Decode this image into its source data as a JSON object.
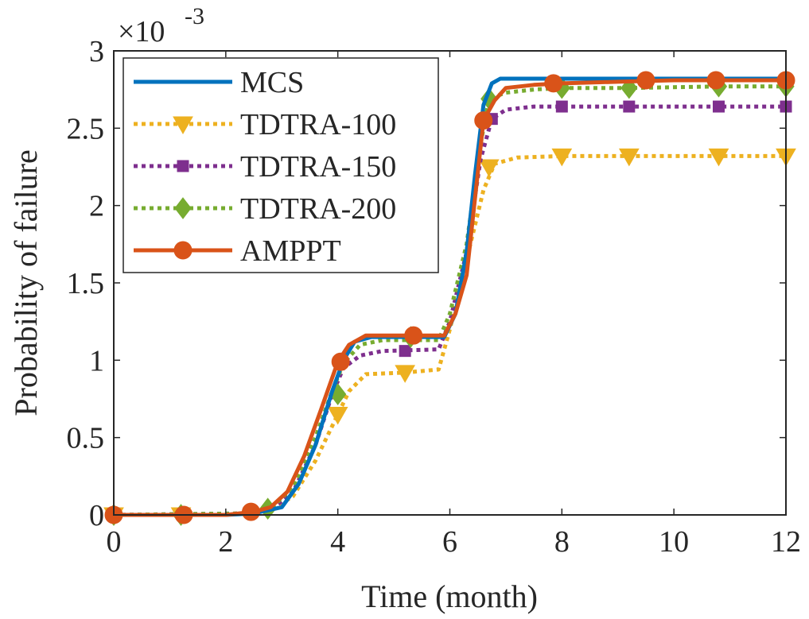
{
  "chart_data": {
    "type": "line",
    "xlabel": "Time (month)",
    "ylabel": "Probability of failure",
    "y_exponent_label": "×10",
    "y_exponent_power": "-3",
    "xlim": [
      0,
      12
    ],
    "ylim": [
      0,
      3
    ],
    "xticks": [
      0,
      2,
      4,
      6,
      8,
      10,
      12
    ],
    "yticks": [
      0,
      0.5,
      1,
      1.5,
      2,
      2.5,
      3
    ],
    "ytick_labels": [
      "0",
      "0.5",
      "1",
      "1.5",
      "2",
      "2.5",
      "3"
    ],
    "grid": false,
    "legend_position": "top-left",
    "series": [
      {
        "name": "MCS",
        "color": "#0072BD",
        "style": "solid",
        "marker": "none",
        "x": [
          0,
          2,
          2.5,
          3,
          3.3,
          3.6,
          3.9,
          4.1,
          4.3,
          4.6,
          5.0,
          5.5,
          5.9,
          6.1,
          6.3,
          6.45,
          6.6,
          6.75,
          6.9,
          7.5,
          8,
          9,
          10,
          11,
          12
        ],
        "y": [
          0,
          0,
          0.01,
          0.05,
          0.2,
          0.45,
          0.8,
          1.0,
          1.12,
          1.15,
          1.15,
          1.15,
          1.15,
          1.3,
          1.7,
          2.2,
          2.65,
          2.79,
          2.82,
          2.82,
          2.82,
          2.82,
          2.82,
          2.82,
          2.82
        ]
      },
      {
        "name": "TDTRA-100",
        "color": "#EDB120",
        "style": "dotted",
        "marker": "triangle-down",
        "x": [
          0,
          1.2,
          2.4,
          2.8,
          3.2,
          3.6,
          4.0,
          4.2,
          4.5,
          5.2,
          5.8,
          6.0,
          6.3,
          6.6,
          6.8,
          7.2,
          8.0,
          9.2,
          10.8,
          12
        ],
        "y": [
          0,
          0,
          0.01,
          0.03,
          0.12,
          0.35,
          0.65,
          0.8,
          0.91,
          0.92,
          0.94,
          1.2,
          1.65,
          2.1,
          2.27,
          2.31,
          2.32,
          2.32,
          2.32,
          2.32
        ],
        "marker_x": [
          0,
          1.2,
          4.0,
          5.2,
          6.7,
          8.0,
          9.2,
          10.8,
          12
        ],
        "marker_y": [
          0,
          0,
          0.65,
          0.92,
          2.25,
          2.32,
          2.32,
          2.32,
          2.32
        ]
      },
      {
        "name": "TDTRA-150",
        "color": "#7E2F8E",
        "style": "dotted",
        "marker": "square",
        "x": [
          0,
          2.4,
          2.8,
          3.2,
          3.6,
          3.9,
          4.1,
          4.4,
          4.8,
          5.8,
          6.0,
          6.3,
          6.55,
          6.75,
          7.0,
          7.5,
          8,
          9.2,
          10.8,
          12
        ],
        "y": [
          0,
          0.01,
          0.03,
          0.15,
          0.45,
          0.78,
          0.95,
          1.03,
          1.06,
          1.07,
          1.25,
          1.7,
          2.3,
          2.56,
          2.62,
          2.64,
          2.64,
          2.64,
          2.64,
          2.64
        ],
        "marker_x": [
          5.2,
          6.75,
          8.0,
          9.2,
          10.8,
          12
        ],
        "marker_y": [
          1.06,
          2.56,
          2.64,
          2.64,
          2.64,
          2.64
        ]
      },
      {
        "name": "TDTRA-200",
        "color": "#77AC30",
        "style": "dotted",
        "marker": "diamond",
        "x": [
          0,
          2.4,
          2.8,
          3.2,
          3.6,
          3.9,
          4.1,
          4.4,
          4.8,
          5.8,
          6.0,
          6.3,
          6.55,
          6.7,
          7.0,
          7.5,
          8,
          9.2,
          10.8,
          12
        ],
        "y": [
          0,
          0.01,
          0.04,
          0.18,
          0.5,
          0.8,
          0.98,
          1.1,
          1.13,
          1.13,
          1.3,
          1.75,
          2.4,
          2.69,
          2.73,
          2.75,
          2.76,
          2.76,
          2.77,
          2.77
        ],
        "marker_x": [
          0,
          1.2,
          2.75,
          4.0,
          5.3,
          6.7,
          8.0,
          9.2,
          10.8,
          12
        ],
        "marker_y": [
          0,
          0,
          0.04,
          0.78,
          1.15,
          2.69,
          2.76,
          2.76,
          2.77,
          2.77
        ]
      },
      {
        "name": "AMPPT",
        "color": "#D95319",
        "style": "solid",
        "marker": "circle",
        "x": [
          0,
          2.0,
          2.5,
          2.8,
          3.1,
          3.4,
          3.7,
          4.0,
          4.2,
          4.5,
          5.0,
          5.5,
          5.9,
          6.1,
          6.3,
          6.45,
          6.6,
          6.8,
          7.0,
          7.5,
          8,
          9,
          10,
          11,
          12
        ],
        "y": [
          0,
          0,
          0.02,
          0.05,
          0.15,
          0.38,
          0.68,
          0.99,
          1.1,
          1.16,
          1.16,
          1.16,
          1.16,
          1.3,
          1.55,
          2.05,
          2.55,
          2.68,
          2.76,
          2.78,
          2.79,
          2.8,
          2.81,
          2.81,
          2.81
        ],
        "marker_x": [
          0,
          1.25,
          2.45,
          4.05,
          5.35,
          6.6,
          7.85,
          9.5,
          10.75,
          12
        ],
        "marker_y": [
          0,
          0,
          0.02,
          0.99,
          1.16,
          2.55,
          2.79,
          2.81,
          2.81,
          2.81
        ]
      }
    ]
  }
}
